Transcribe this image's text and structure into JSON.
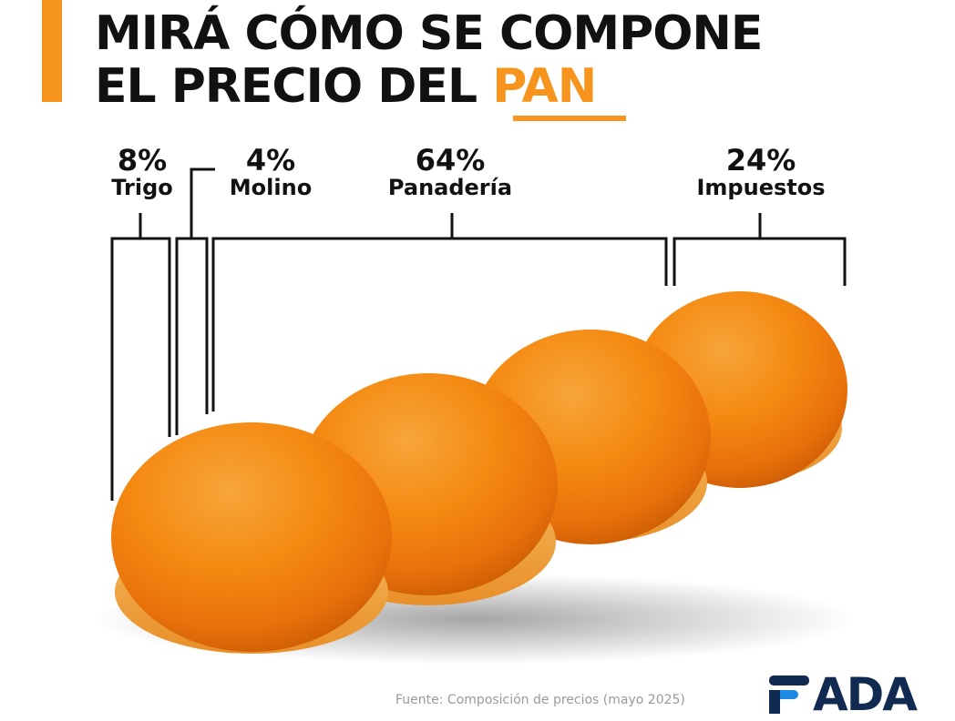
{
  "title": {
    "line1": "MIRÁ CÓMO SE COMPONE",
    "line2_prefix": "EL PRECIO DEL ",
    "line2_highlight": "PAN"
  },
  "segments": [
    {
      "percent": "8%",
      "label": "Trigo"
    },
    {
      "percent": "4%",
      "label": "Molino"
    },
    {
      "percent": "64%",
      "label": "Panadería"
    },
    {
      "percent": "24%",
      "label": "Impuestos"
    }
  ],
  "source": "Fuente: Composición de precios (mayo 2025)",
  "logo": {
    "text": "ADA"
  },
  "colors": {
    "accent": "#f7941d",
    "text": "#111111",
    "logo_navy": "#102a52",
    "logo_blue": "#1e88e5",
    "bread": "#f57c00"
  }
}
